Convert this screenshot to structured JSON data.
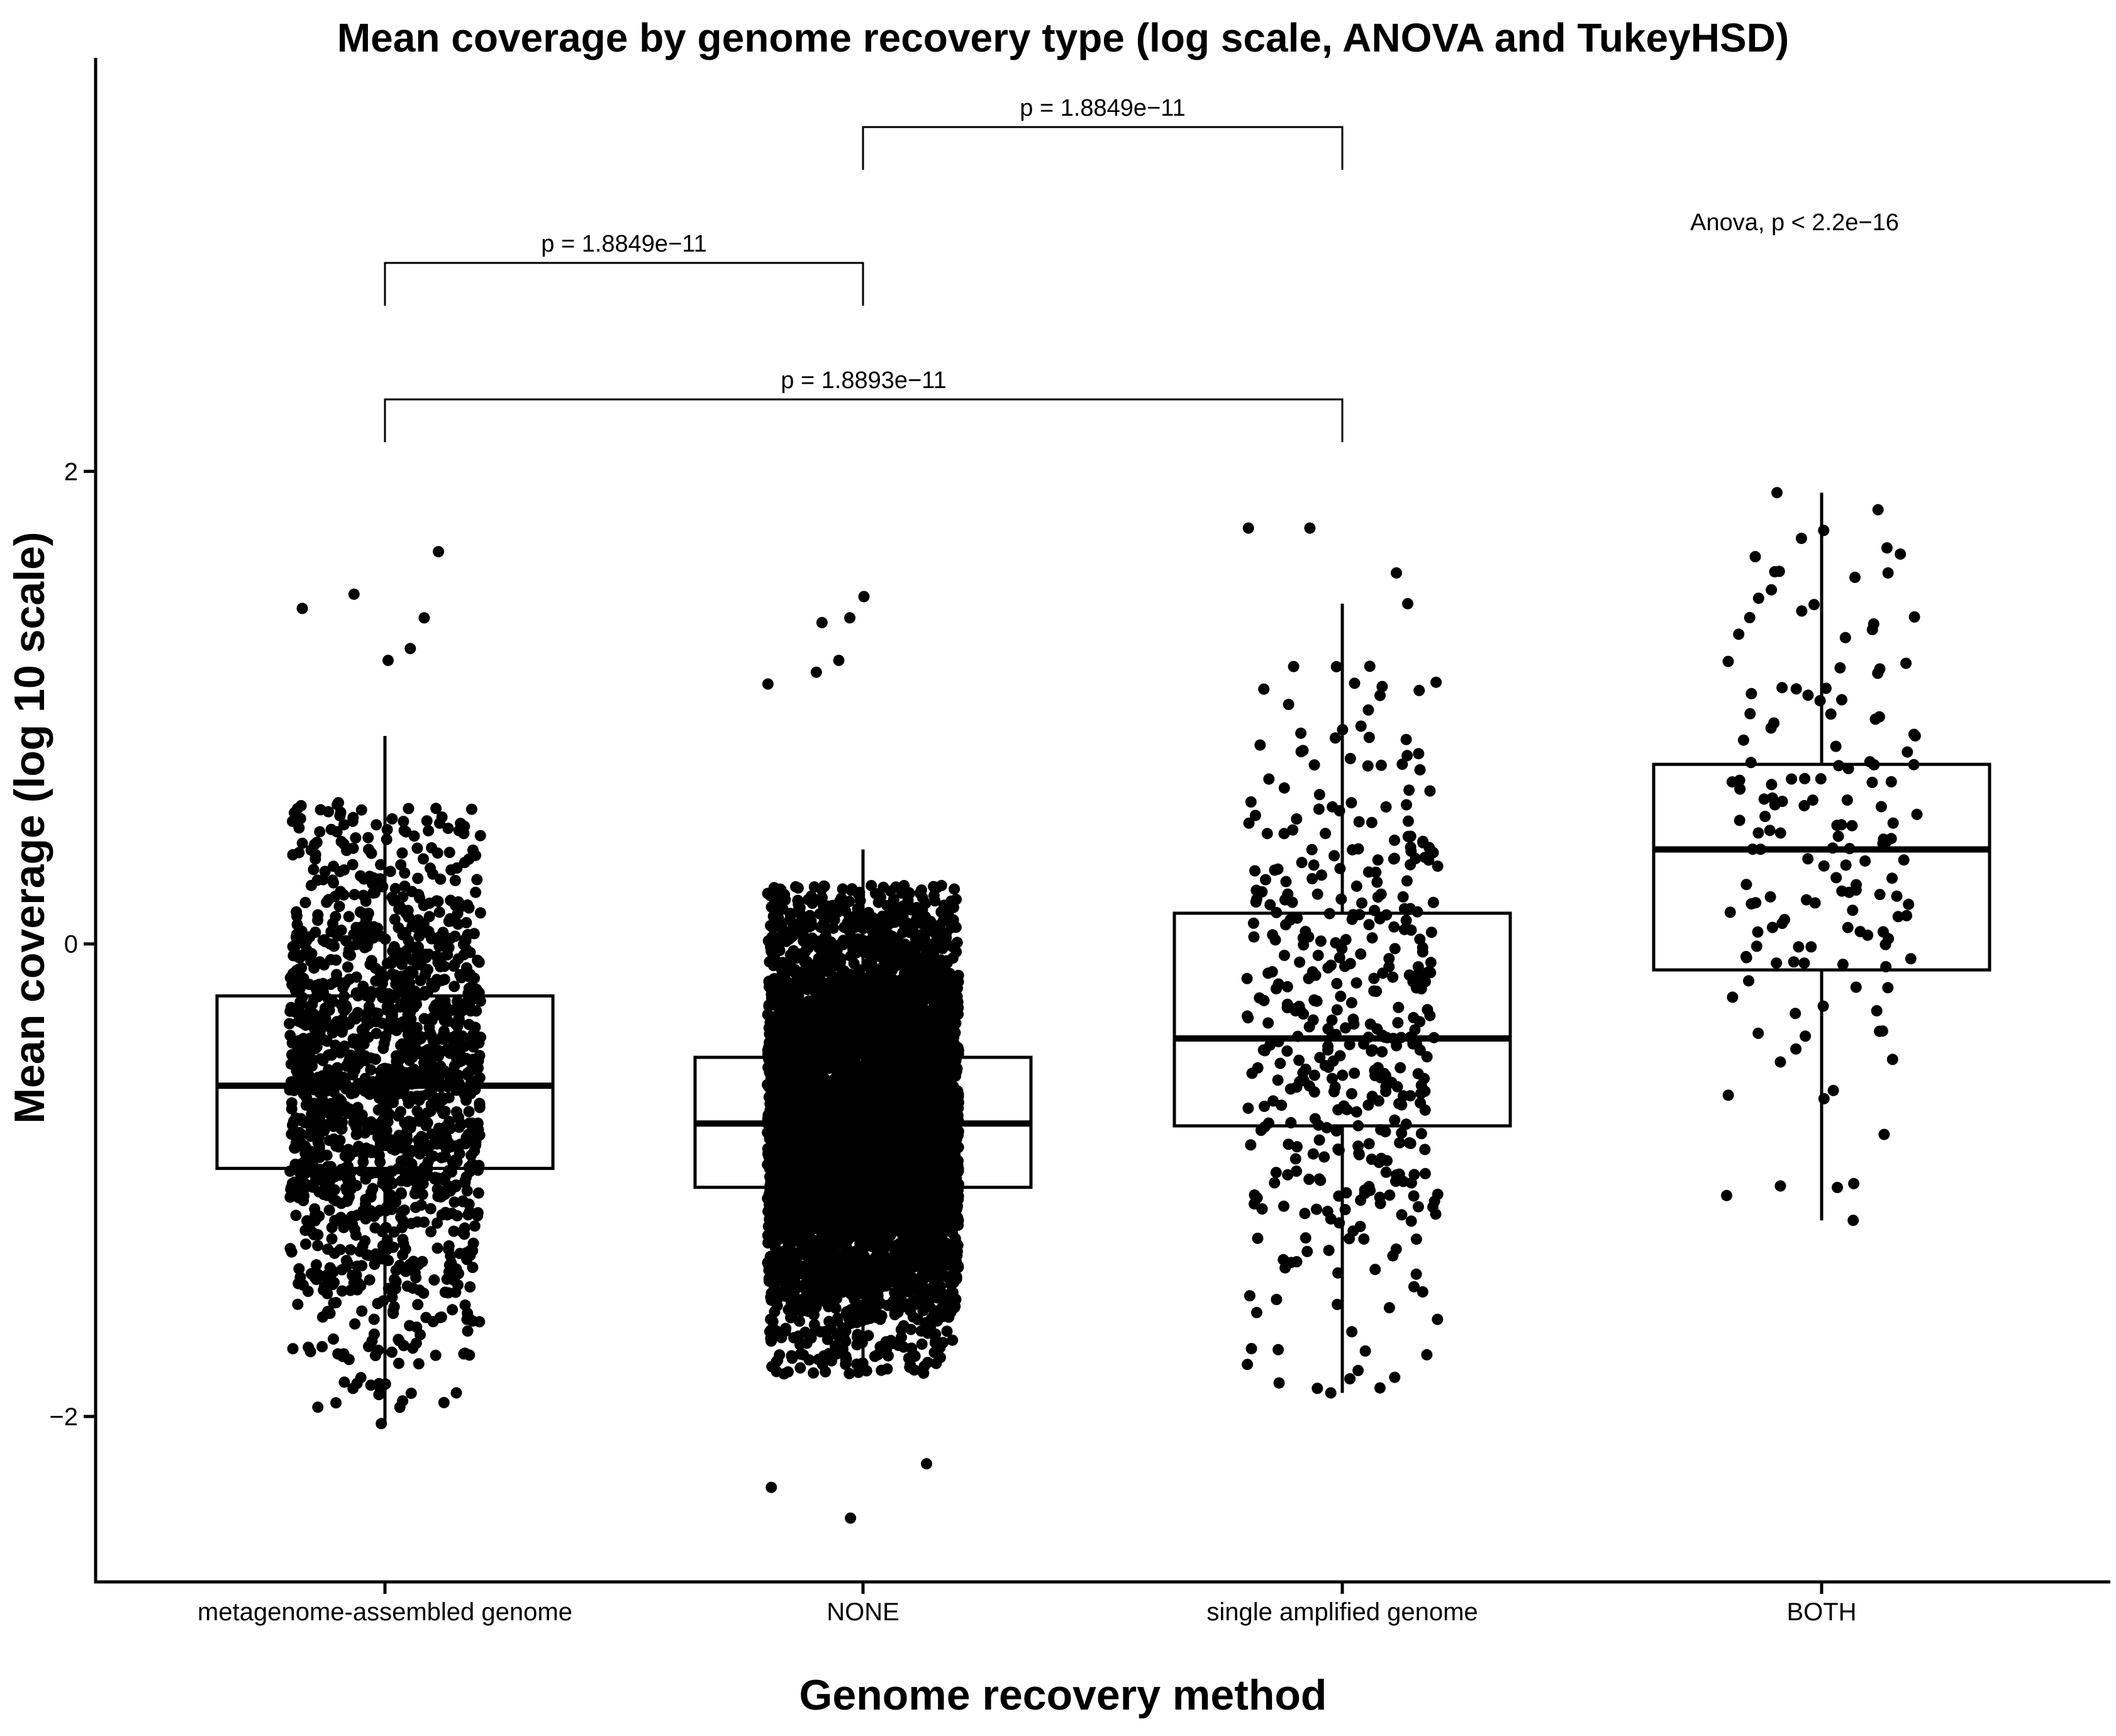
{
  "chart_data": {
    "type": "box",
    "title": "Mean coverage by genome recovery type (log scale, ANOVA and TukeyHSD)",
    "xlabel": "Genome recovery method",
    "ylabel": "Mean coverage (log 10 scale)",
    "ylim": [
      -2.7,
      3.75
    ],
    "yticks": [
      -2,
      0,
      2
    ],
    "categories": [
      "metagenome-assembled genome",
      "NONE",
      "single amplified genome",
      "BOTH"
    ],
    "grid": false,
    "legend": "none",
    "boxes": [
      {
        "category": "metagenome-assembled genome",
        "q1": -0.95,
        "median": -0.6,
        "q3": -0.22,
        "whisker_low": -2.02,
        "whisker_high": 0.88,
        "n_points": 1500,
        "point_spread": [
          -1.6,
          0.6
        ],
        "outliers": [
          1.2,
          1.25,
          1.38,
          1.42,
          1.48,
          1.66,
          -1.9,
          -2.03
        ]
      },
      {
        "category": "NONE",
        "q1": -1.03,
        "median": -0.76,
        "q3": -0.48,
        "whisker_low": -1.82,
        "whisker_high": 0.4,
        "n_points": 6000,
        "point_spread": [
          -1.55,
          0.25
        ],
        "outliers": [
          1.1,
          1.15,
          1.2,
          1.36,
          1.38,
          1.47,
          -2.2,
          -2.3,
          -2.43
        ]
      },
      {
        "category": "single amplified genome",
        "q1": -0.77,
        "median": -0.4,
        "q3": 0.13,
        "whisker_low": -1.9,
        "whisker_high": 1.44,
        "n_points": 420,
        "point_spread": [
          -1.4,
          1.2
        ],
        "outliers": [
          1.57,
          1.76,
          1.76,
          1.44,
          -1.9
        ]
      },
      {
        "category": "BOTH",
        "q1": -0.11,
        "median": 0.4,
        "q3": 0.76,
        "whisker_low": -1.17,
        "whisker_high": 1.91,
        "n_points": 150,
        "point_spread": [
          -1.15,
          1.9
        ],
        "outliers": [
          1.91,
          1.65,
          1.75,
          -1.17
        ]
      }
    ],
    "comparisons": [
      {
        "from": "NONE",
        "to": "single amplified genome",
        "label": "p = 1.8849e−11"
      },
      {
        "from": "metagenome-assembled genome",
        "to": "NONE",
        "label": "p = 1.8849e−11"
      },
      {
        "from": "metagenome-assembled genome",
        "to": "single amplified genome",
        "label": "p = 1.8893e−11"
      }
    ],
    "anova_label": "Anova, p < 2.2e−16"
  }
}
